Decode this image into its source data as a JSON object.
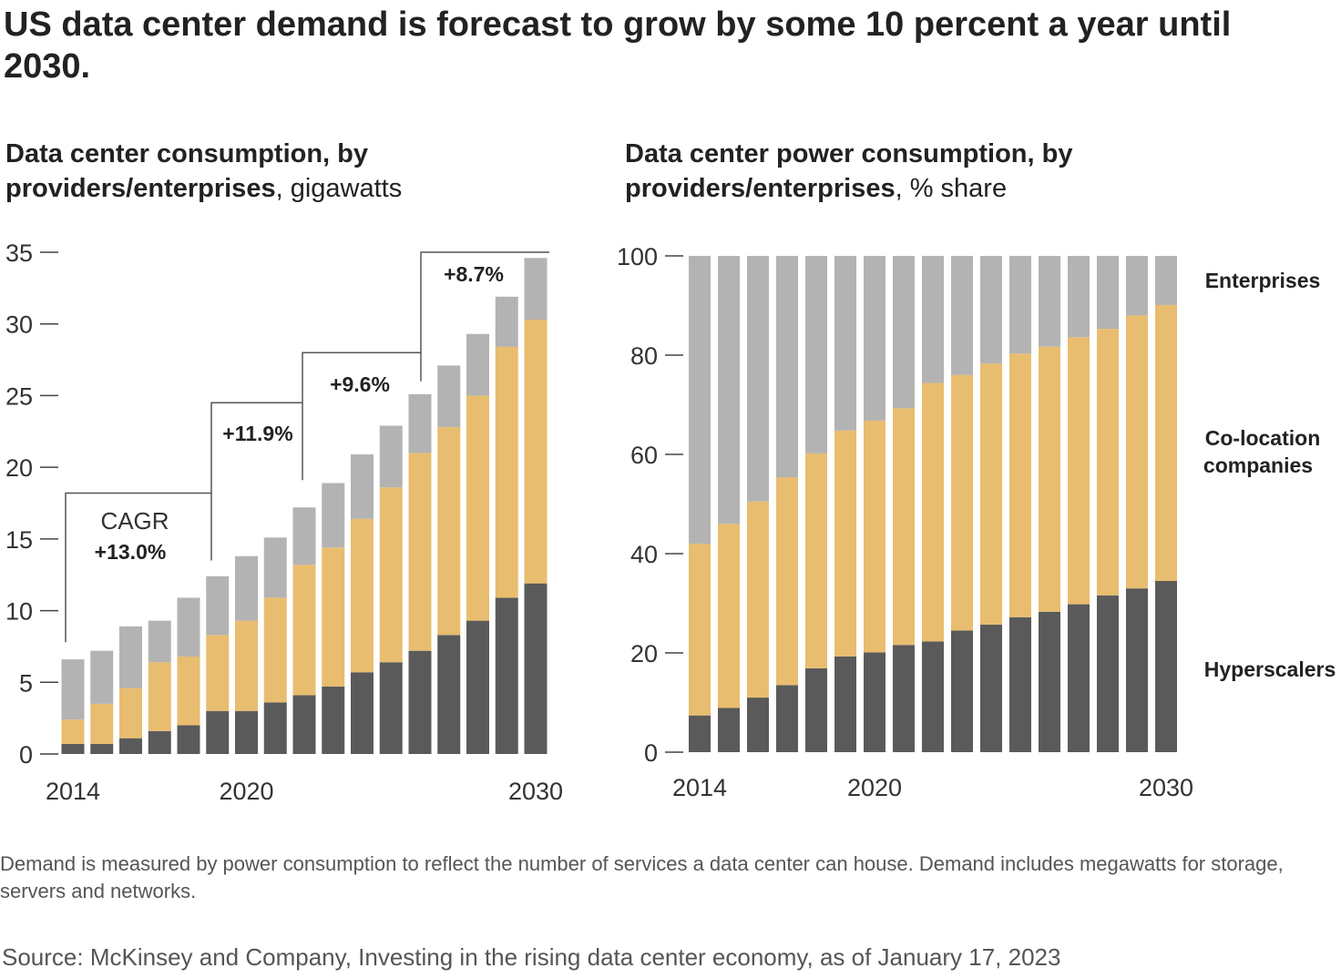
{
  "headline": "US data center demand is forecast to grow by some 10 percent a year until 2030.",
  "colors": {
    "hyperscalers": "#5a5a5a",
    "colocation": "#e8bd6f",
    "enterprises": "#b3b3b3"
  },
  "chart_data": [
    {
      "type": "bar",
      "stacked": true,
      "title": "Data center consumption, by providers/enterprises",
      "title_unit": ", gigawatts",
      "x": [
        2014,
        2015,
        2016,
        2017,
        2018,
        2019,
        2020,
        2021,
        2022,
        2023,
        2024,
        2025,
        2026,
        2027,
        2028,
        2029,
        2030
      ],
      "x_tick_labels": [
        "2014",
        "2020",
        "2030"
      ],
      "x_tick_values": [
        2014,
        2020,
        2030
      ],
      "ylim": [
        0,
        35
      ],
      "y_ticks": [
        0,
        5,
        10,
        15,
        20,
        25,
        30,
        35
      ],
      "series": [
        {
          "key": "hyperscalers",
          "values": [
            0.7,
            0.7,
            1.1,
            1.6,
            2.0,
            3.0,
            3.0,
            3.6,
            4.1,
            4.7,
            5.7,
            6.4,
            7.2,
            8.3,
            9.3,
            10.9,
            11.9
          ]
        },
        {
          "key": "colocation",
          "values": [
            1.7,
            2.8,
            3.5,
            4.8,
            4.8,
            5.3,
            6.3,
            7.3,
            9.1,
            9.7,
            10.7,
            12.2,
            13.8,
            14.5,
            15.7,
            17.5,
            18.4
          ]
        },
        {
          "key": "enterprises",
          "values": [
            4.2,
            3.7,
            4.3,
            2.9,
            4.1,
            4.1,
            4.5,
            4.2,
            4.0,
            4.5,
            4.5,
            4.3,
            4.1,
            4.3,
            4.3,
            3.5,
            4.3
          ]
        }
      ],
      "cagr_label": "CAGR",
      "cagr": [
        {
          "from": 2014,
          "to": 2019,
          "label": "+13.0%"
        },
        {
          "from": 2019,
          "to": 2022,
          "label": "+11.9%"
        },
        {
          "from": 2022,
          "to": 2026,
          "label": "+9.6%"
        },
        {
          "from": 2026,
          "to": 2030,
          "label": "+8.7%"
        }
      ]
    },
    {
      "type": "bar",
      "stacked": true,
      "title": "Data center power consumption, by providers/enterprises",
      "title_unit": ", % share",
      "x": [
        2014,
        2015,
        2016,
        2017,
        2018,
        2019,
        2020,
        2021,
        2022,
        2023,
        2024,
        2025,
        2026,
        2027,
        2028,
        2029,
        2030
      ],
      "x_tick_labels": [
        "2014",
        "2020",
        "2030"
      ],
      "x_tick_values": [
        2014,
        2020,
        2030
      ],
      "ylim": [
        0,
        100
      ],
      "y_ticks": [
        0,
        20,
        40,
        60,
        80,
        100
      ],
      "series": [
        {
          "key": "hyperscalers",
          "name": "Hyperscalers",
          "values": [
            7.4,
            8.9,
            11.0,
            13.5,
            16.9,
            19.3,
            20.1,
            21.6,
            22.3,
            24.5,
            25.7,
            27.2,
            28.3,
            29.8,
            31.6,
            33.0,
            34.5
          ]
        },
        {
          "key": "colocation",
          "name": "Co-location companies",
          "values": [
            34.6,
            37.1,
            39.5,
            41.9,
            43.3,
            45.5,
            46.7,
            47.7,
            52.1,
            51.5,
            52.6,
            53.1,
            53.4,
            53.8,
            53.7,
            55.0,
            55.6
          ]
        },
        {
          "key": "enterprises",
          "name": "Enterprises",
          "values": [
            58.0,
            54.0,
            49.5,
            44.6,
            39.8,
            35.2,
            33.2,
            30.7,
            25.6,
            24.0,
            21.7,
            19.7,
            18.3,
            16.4,
            14.7,
            12.0,
            9.9
          ]
        }
      ],
      "legend_placement": "right"
    }
  ],
  "note": "Demand is measured by power consumption to reflect the number of services a data center can house. Demand includes megawatts for storage, servers and networks.",
  "source": "Source: McKinsey and Company, Investing in the rising data center economy, as of January 17, 2023"
}
